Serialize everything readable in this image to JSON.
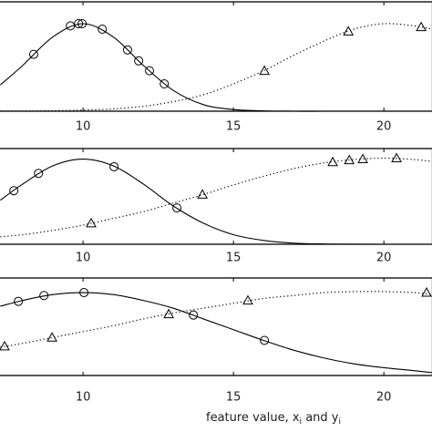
{
  "chart_data": [
    {
      "type": "line",
      "xlim": [
        7.24,
        21.6
      ],
      "ylim": [
        0,
        1
      ],
      "xticks": [
        10,
        15,
        20
      ],
      "x": [
        7.25,
        8,
        9,
        10,
        11,
        12,
        13,
        14,
        15,
        16,
        17,
        18,
        19,
        20,
        21,
        21.6
      ],
      "series": [
        {
          "style": "solid",
          "color": "#000000",
          "values": [
            0.24,
            0.42,
            0.68,
            0.8,
            0.68,
            0.42,
            0.19,
            0.06,
            0.015,
            0.003,
            0,
            0,
            0,
            0,
            0,
            0
          ]
        },
        {
          "style": "dotted",
          "color": "#000000",
          "values": [
            0.001,
            0.001,
            0.004,
            0.01,
            0.02,
            0.045,
            0.087,
            0.15,
            0.25,
            0.37,
            0.51,
            0.64,
            0.75,
            0.8,
            0.78,
            0.75
          ]
        }
      ],
      "markers": [
        {
          "marker": "circle",
          "x": [
            8.36,
            9.58,
            9.85,
            9.97,
            10.64,
            11.48,
            11.85,
            12.21,
            12.7
          ],
          "values": [
            0.52,
            0.78,
            0.8,
            0.8,
            0.75,
            0.56,
            0.46,
            0.37,
            0.25
          ]
        },
        {
          "marker": "triangle",
          "x": [
            16.03,
            18.82,
            21.24
          ],
          "values": [
            0.37,
            0.73,
            0.77
          ]
        }
      ]
    },
    {
      "type": "line",
      "xlim": [
        7.24,
        21.6
      ],
      "ylim": [
        0,
        1
      ],
      "xticks": [
        10,
        15,
        20
      ],
      "x": [
        7.25,
        8,
        9,
        10,
        11,
        12,
        13,
        14,
        15,
        16,
        17,
        18,
        19,
        20,
        21,
        21.6
      ],
      "series": [
        {
          "style": "solid",
          "color": "#000000",
          "values": [
            0.46,
            0.63,
            0.82,
            0.89,
            0.82,
            0.63,
            0.4,
            0.22,
            0.1,
            0.04,
            0.012,
            0.003,
            0.001,
            0,
            0,
            0
          ]
        },
        {
          "style": "dotted",
          "color": "#000000",
          "values": [
            0.078,
            0.1,
            0.145,
            0.2,
            0.27,
            0.34,
            0.43,
            0.52,
            0.62,
            0.71,
            0.79,
            0.85,
            0.885,
            0.9,
            0.885,
            0.866
          ]
        }
      ],
      "markers": [
        {
          "marker": "circle",
          "x": [
            7.7,
            8.52,
            11.03,
            13.12
          ],
          "values": [
            0.56,
            0.74,
            0.81,
            0.38
          ]
        },
        {
          "marker": "triangle",
          "x": [
            10.27,
            13.97,
            18.3,
            18.85,
            19.3,
            20.42
          ],
          "values": [
            0.22,
            0.52,
            0.86,
            0.88,
            0.89,
            0.9
          ]
        }
      ]
    },
    {
      "type": "line",
      "xlim": [
        7.24,
        21.6
      ],
      "ylim": [
        0,
        1
      ],
      "xticks": [
        10,
        15,
        20
      ],
      "xlabel": [
        "feature value, x",
        "i",
        " and y",
        "i"
      ],
      "x": [
        7.25,
        8,
        9,
        10,
        11,
        12,
        13,
        14,
        15,
        16,
        17,
        18,
        19,
        20,
        21,
        21.6
      ],
      "series": [
        {
          "style": "solid",
          "color": "#000000",
          "values": [
            0.71,
            0.77,
            0.83,
            0.85,
            0.83,
            0.77,
            0.69,
            0.58,
            0.47,
            0.36,
            0.26,
            0.18,
            0.12,
            0.08,
            0.05,
            0.03
          ]
        },
        {
          "style": "dotted",
          "color": "#000000",
          "values": [
            0.29,
            0.33,
            0.39,
            0.45,
            0.51,
            0.58,
            0.64,
            0.69,
            0.74,
            0.79,
            0.82,
            0.85,
            0.86,
            0.86,
            0.85,
            0.83
          ]
        }
      ],
      "markers": [
        {
          "marker": "circle",
          "x": [
            7.85,
            8.7,
            10.03,
            13.67,
            16.03
          ],
          "values": [
            0.76,
            0.82,
            0.85,
            0.62,
            0.36
          ]
        },
        {
          "marker": "triangle",
          "x": [
            7.39,
            8.97,
            12.85,
            15.48,
            21.42
          ],
          "values": [
            0.3,
            0.39,
            0.63,
            0.77,
            0.85
          ]
        }
      ]
    }
  ]
}
